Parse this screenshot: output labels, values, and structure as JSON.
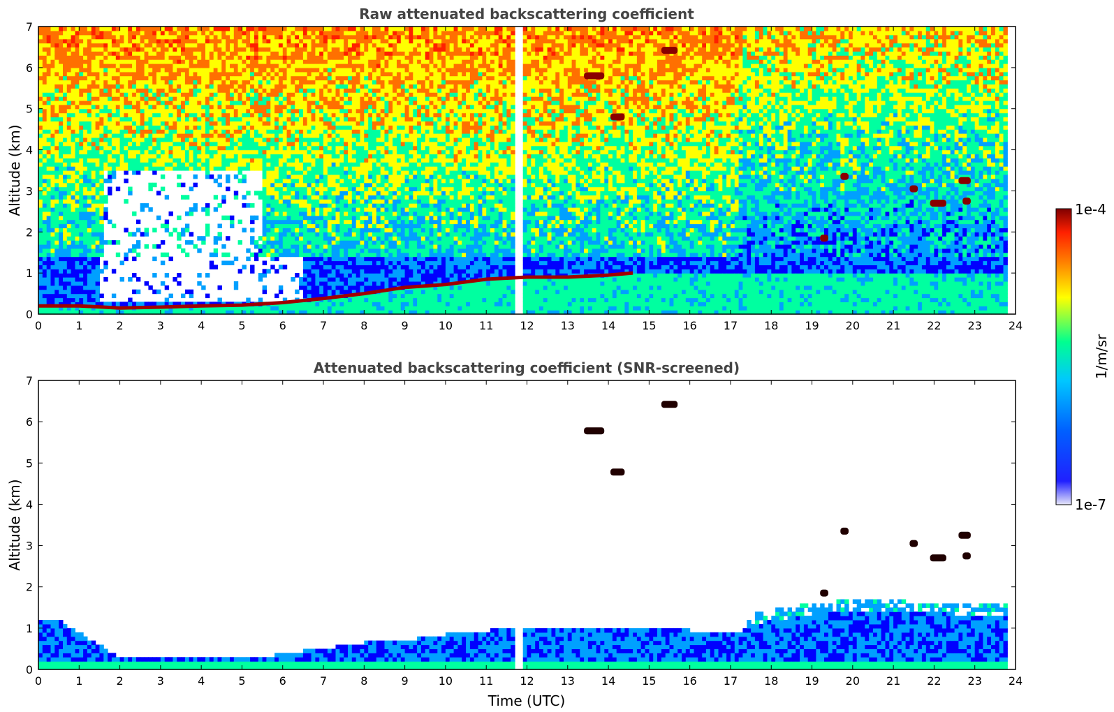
{
  "chart_data": [
    {
      "type": "heatmap",
      "title": "Raw attenuated backscattering coefficient",
      "xlabel": "",
      "ylabel": "Altitude (km)",
      "xlim": [
        0,
        24
      ],
      "ylim": [
        0,
        7
      ],
      "xticks": [
        "0",
        "1",
        "2",
        "3",
        "4",
        "5",
        "6",
        "7",
        "8",
        "9",
        "10",
        "11",
        "12",
        "13",
        "14",
        "15",
        "16",
        "17",
        "18",
        "19",
        "20",
        "21",
        "22",
        "23",
        "24"
      ],
      "yticks": [
        "0",
        "1",
        "2",
        "3",
        "4",
        "5",
        "6",
        "7"
      ],
      "data_gap_hours": [
        11.65,
        11.95
      ],
      "data_end_hour": 23.8,
      "boundary_layer_top_km": [
        {
          "time": 0.0,
          "alt": 0.2
        },
        {
          "time": 1.0,
          "alt": 0.2
        },
        {
          "time": 2.0,
          "alt": 0.15
        },
        {
          "time": 3.0,
          "alt": 0.17
        },
        {
          "time": 4.0,
          "alt": 0.2
        },
        {
          "time": 5.0,
          "alt": 0.22
        },
        {
          "time": 6.0,
          "alt": 0.28
        },
        {
          "time": 7.0,
          "alt": 0.38
        },
        {
          "time": 8.0,
          "alt": 0.5
        },
        {
          "time": 9.0,
          "alt": 0.65
        },
        {
          "time": 10.0,
          "alt": 0.72
        },
        {
          "time": 11.0,
          "alt": 0.85
        },
        {
          "time": 12.0,
          "alt": 0.9
        },
        {
          "time": 13.0,
          "alt": 0.9
        },
        {
          "time": 14.0,
          "alt": 0.95
        },
        {
          "time": 14.6,
          "alt": 1.0
        }
      ],
      "cloud_layers": [
        {
          "time_start": 13.4,
          "time_end": 13.9,
          "alt": 5.8
        },
        {
          "time_start": 14.05,
          "time_end": 14.4,
          "alt": 4.8
        },
        {
          "time_start": 15.3,
          "time_end": 15.7,
          "alt": 6.42
        },
        {
          "time_start": 19.2,
          "time_end": 19.4,
          "alt": 1.85
        },
        {
          "time_start": 19.7,
          "time_end": 19.9,
          "alt": 3.35
        },
        {
          "time_start": 21.4,
          "time_end": 21.6,
          "alt": 3.05
        },
        {
          "time_start": 21.9,
          "time_end": 22.3,
          "alt": 2.7
        },
        {
          "time_start": 22.6,
          "time_end": 22.9,
          "alt": 3.25
        },
        {
          "time_start": 22.7,
          "time_end": 22.9,
          "alt": 2.75
        }
      ]
    },
    {
      "type": "heatmap",
      "title": "Attenuated backscattering coefficient (SNR-screened)",
      "xlabel": "Time (UTC)",
      "ylabel": "Altitude (km)",
      "xlim": [
        0,
        24
      ],
      "ylim": [
        0,
        7
      ],
      "xticks": [
        "0",
        "1",
        "2",
        "3",
        "4",
        "5",
        "6",
        "7",
        "8",
        "9",
        "10",
        "11",
        "12",
        "13",
        "14",
        "15",
        "16",
        "17",
        "18",
        "19",
        "20",
        "21",
        "22",
        "23",
        "24"
      ],
      "yticks": [
        "0",
        "1",
        "2",
        "3",
        "4",
        "5",
        "6",
        "7"
      ],
      "data_gap_hours": [
        11.65,
        11.95
      ],
      "data_end_hour": 23.8,
      "aerosol_top_km": [
        {
          "time": 0.0,
          "alt": 1.2
        },
        {
          "time": 0.4,
          "alt": 1.25
        },
        {
          "time": 1.0,
          "alt": 0.9
        },
        {
          "time": 1.5,
          "alt": 0.6
        },
        {
          "time": 2.0,
          "alt": 0.3
        },
        {
          "time": 4.0,
          "alt": 0.3
        },
        {
          "time": 5.5,
          "alt": 0.3
        },
        {
          "time": 6.5,
          "alt": 0.45
        },
        {
          "time": 8.0,
          "alt": 0.65
        },
        {
          "time": 9.0,
          "alt": 0.7
        },
        {
          "time": 10.0,
          "alt": 0.85
        },
        {
          "time": 11.6,
          "alt": 1.0
        },
        {
          "time": 12.0,
          "alt": 0.95
        },
        {
          "time": 14.0,
          "alt": 1.0
        },
        {
          "time": 16.0,
          "alt": 0.95
        },
        {
          "time": 17.3,
          "alt": 0.9
        },
        {
          "time": 17.5,
          "alt": 1.35
        },
        {
          "time": 19.0,
          "alt": 1.6
        },
        {
          "time": 20.0,
          "alt": 1.7
        },
        {
          "time": 23.8,
          "alt": 1.55
        }
      ],
      "cloud_layers": [
        {
          "time_start": 13.4,
          "time_end": 13.9,
          "alt": 5.78
        },
        {
          "time_start": 14.05,
          "time_end": 14.4,
          "alt": 4.78
        },
        {
          "time_start": 15.3,
          "time_end": 15.7,
          "alt": 6.42
        },
        {
          "time_start": 19.2,
          "time_end": 19.4,
          "alt": 1.85
        },
        {
          "time_start": 19.7,
          "time_end": 19.9,
          "alt": 3.35
        },
        {
          "time_start": 21.4,
          "time_end": 21.6,
          "alt": 3.05
        },
        {
          "time_start": 21.9,
          "time_end": 22.3,
          "alt": 2.7
        },
        {
          "time_start": 22.6,
          "time_end": 22.9,
          "alt": 3.25
        },
        {
          "time_start": 22.7,
          "time_end": 22.9,
          "alt": 2.75
        }
      ]
    }
  ],
  "colorbar": {
    "label": "1/m/sr",
    "max_label": "1e-4",
    "min_label": "1e-7",
    "scale": "log",
    "range": [
      1e-07,
      0.0001
    ],
    "colormap": [
      "#e6e6f8",
      "#0000ff",
      "#00a0ff",
      "#00ffa0",
      "#ffff00",
      "#ff7000",
      "#ff2000",
      "#800000"
    ]
  }
}
